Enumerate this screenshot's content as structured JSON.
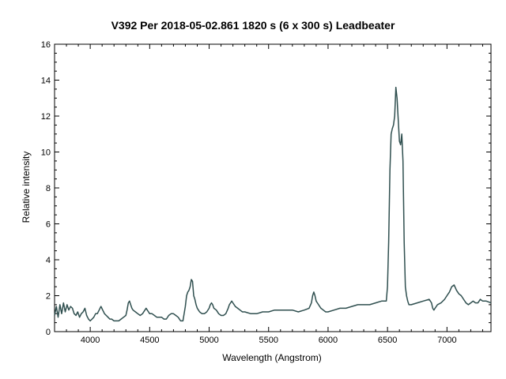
{
  "chart_data": {
    "type": "line",
    "title": "V392 Per   2018-05-02.861   1820 s (6 x 300 s)   Leadbeater",
    "xlabel": "Wavelength (Angstrom)",
    "ylabel": "Relative intensity",
    "xlim": [
      3700,
      7370
    ],
    "ylim": [
      0,
      16
    ],
    "xticks": [
      4000,
      4500,
      5000,
      5500,
      6000,
      6500,
      7000
    ],
    "yticks": [
      0,
      2,
      4,
      6,
      8,
      10,
      12,
      14,
      16
    ],
    "grid": false,
    "legend": "none",
    "colors": {
      "line": "#2f4f4f",
      "axis": "#000000"
    },
    "series": [
      {
        "x": [
          3700,
          3715,
          3730,
          3745,
          3760,
          3775,
          3790,
          3805,
          3820,
          3835,
          3850,
          3865,
          3880,
          3895,
          3910,
          3925,
          3940,
          3955,
          3970,
          3985,
          4000,
          4015,
          4030,
          4045,
          4060,
          4075,
          4090,
          4105,
          4120,
          4135,
          4150,
          4165,
          4180,
          4200,
          4220,
          4240,
          4260,
          4280,
          4300,
          4310,
          4320,
          4330,
          4340,
          4350,
          4360,
          4380,
          4400,
          4420,
          4440,
          4460,
          4470,
          4480,
          4490,
          4500,
          4520,
          4540,
          4560,
          4580,
          4600,
          4620,
          4640,
          4660,
          4680,
          4700,
          4720,
          4740,
          4760,
          4780,
          4800,
          4810,
          4820,
          4830,
          4840,
          4850,
          4860,
          4870,
          4880,
          4890,
          4900,
          4910,
          4920,
          4940,
          4960,
          4980,
          5000,
          5010,
          5020,
          5030,
          5040,
          5060,
          5080,
          5100,
          5120,
          5140,
          5160,
          5170,
          5180,
          5190,
          5200,
          5220,
          5240,
          5260,
          5280,
          5300,
          5350,
          5400,
          5450,
          5500,
          5550,
          5600,
          5650,
          5700,
          5750,
          5800,
          5840,
          5860,
          5870,
          5880,
          5890,
          5900,
          5910,
          5920,
          5940,
          5960,
          5980,
          6000,
          6050,
          6100,
          6150,
          6200,
          6250,
          6300,
          6350,
          6400,
          6450,
          6480,
          6490,
          6500,
          6510,
          6520,
          6530,
          6540,
          6550,
          6560,
          6570,
          6580,
          6590,
          6600,
          6610,
          6620,
          6630,
          6640,
          6650,
          6660,
          6670,
          6680,
          6700,
          6750,
          6800,
          6850,
          6860,
          6870,
          6880,
          6890,
          6900,
          6920,
          6950,
          6980,
          7000,
          7020,
          7040,
          7060,
          7080,
          7100,
          7120,
          7140,
          7160,
          7180,
          7200,
          7220,
          7240,
          7260,
          7280,
          7300,
          7330,
          7370
        ],
        "y": [
          0.9,
          1.4,
          0.8,
          1.5,
          1.0,
          1.6,
          1.1,
          1.5,
          1.2,
          1.4,
          1.3,
          1.0,
          0.9,
          1.1,
          0.8,
          1.0,
          1.1,
          1.3,
          0.9,
          0.7,
          0.6,
          0.7,
          0.8,
          1.0,
          1.0,
          1.2,
          1.4,
          1.2,
          1.0,
          0.9,
          0.8,
          0.7,
          0.7,
          0.6,
          0.6,
          0.6,
          0.7,
          0.8,
          0.9,
          1.2,
          1.6,
          1.7,
          1.5,
          1.3,
          1.2,
          1.1,
          1.0,
          0.9,
          1.0,
          1.2,
          1.3,
          1.2,
          1.1,
          1.0,
          1.0,
          0.9,
          0.8,
          0.8,
          0.8,
          0.7,
          0.7,
          0.9,
          1.0,
          1.0,
          0.9,
          0.8,
          0.6,
          0.6,
          1.4,
          2.0,
          2.2,
          2.3,
          2.5,
          2.9,
          2.8,
          2.0,
          1.8,
          1.5,
          1.3,
          1.2,
          1.1,
          1.0,
          1.0,
          1.1,
          1.3,
          1.5,
          1.6,
          1.5,
          1.3,
          1.2,
          1.0,
          0.9,
          0.9,
          1.0,
          1.3,
          1.5,
          1.6,
          1.7,
          1.6,
          1.4,
          1.3,
          1.2,
          1.1,
          1.1,
          1.0,
          1.0,
          1.1,
          1.1,
          1.2,
          1.2,
          1.2,
          1.2,
          1.1,
          1.2,
          1.3,
          1.6,
          2.0,
          2.2,
          2.0,
          1.7,
          1.6,
          1.5,
          1.3,
          1.2,
          1.1,
          1.1,
          1.2,
          1.3,
          1.3,
          1.4,
          1.5,
          1.5,
          1.5,
          1.6,
          1.7,
          1.7,
          1.7,
          2.5,
          5.0,
          9.0,
          11.0,
          11.3,
          11.5,
          12.0,
          13.6,
          13.0,
          11.8,
          10.6,
          10.4,
          11.0,
          9.5,
          5.0,
          2.5,
          2.0,
          1.7,
          1.5,
          1.5,
          1.6,
          1.7,
          1.8,
          1.7,
          1.6,
          1.3,
          1.2,
          1.3,
          1.5,
          1.6,
          1.8,
          2.0,
          2.2,
          2.5,
          2.6,
          2.3,
          2.1,
          2.0,
          1.8,
          1.6,
          1.5,
          1.6,
          1.7,
          1.6,
          1.6,
          1.8,
          1.7,
          1.7,
          1.6
        ]
      }
    ]
  }
}
